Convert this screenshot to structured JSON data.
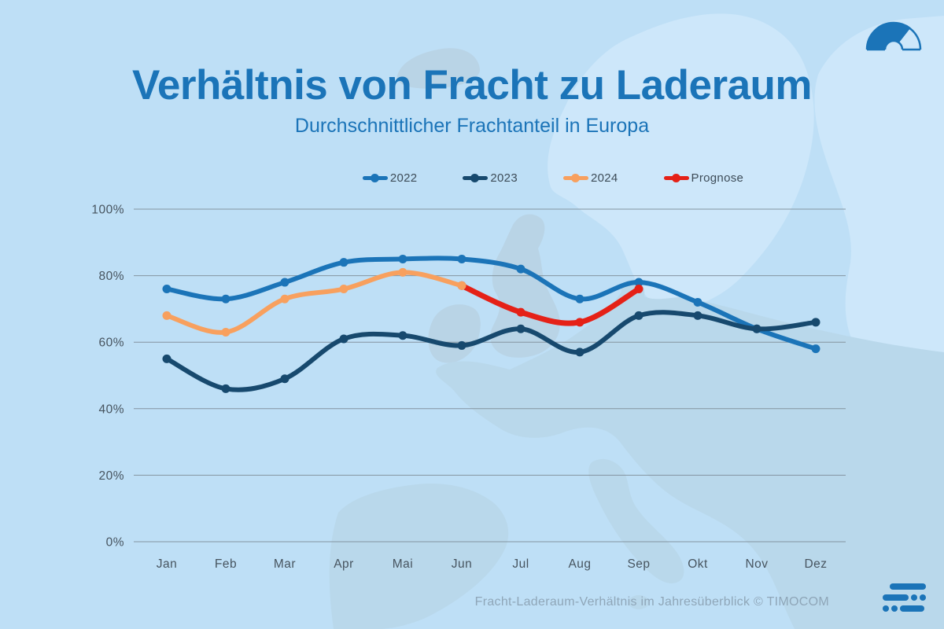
{
  "header": {
    "title": "Verhältnis von Fracht zu Laderaum",
    "subtitle": "Durchschnittlicher Frachtanteil in Europa"
  },
  "footer": {
    "caption": "Fracht-Laderaum-Verhältnis im Jahresüberblick © TIMOCOM"
  },
  "icons": {
    "top_right": "gauge-logo",
    "bottom_right": "timocom-logo"
  },
  "colors": {
    "background": "#bedff6",
    "title": "#1b74b8",
    "axis_text": "#47545f",
    "gridline": "#8494a0",
    "footer_text": "#8fa6b8",
    "logo_blue": "#1b74b8"
  },
  "chart_data": {
    "type": "line",
    "title": "Verhältnis von Fracht zu Laderaum",
    "subtitle": "Durchschnittlicher Frachtanteil in Europa",
    "categories": [
      "Jan",
      "Feb",
      "Mar",
      "Apr",
      "Mai",
      "Jun",
      "Jul",
      "Aug",
      "Sep",
      "Okt",
      "Nov",
      "Dez"
    ],
    "series": [
      {
        "name": "2022",
        "color": "#1b74b8",
        "z": 1,
        "values": [
          76,
          73,
          78,
          84,
          85,
          85,
          82,
          73,
          78,
          72,
          64,
          58
        ]
      },
      {
        "name": "2023",
        "color": "#17496e",
        "z": 2,
        "values": [
          55,
          46,
          49,
          61,
          62,
          59,
          64,
          57,
          68,
          68,
          64,
          66
        ]
      },
      {
        "name": "2024",
        "color": "#f8a05e",
        "z": 4,
        "values": [
          68,
          63,
          73,
          76,
          81,
          77,
          null,
          null,
          null,
          null,
          null,
          null
        ]
      },
      {
        "name": "Prognose",
        "color": "#e52117",
        "z": 3,
        "values": [
          null,
          null,
          null,
          null,
          null,
          77,
          69,
          66,
          76,
          null,
          null,
          null
        ]
      }
    ],
    "xlabel": "",
    "ylabel": "",
    "ylim": [
      0,
      100
    ],
    "yticks": [
      0,
      20,
      40,
      60,
      80,
      100
    ],
    "ytick_format": "percent",
    "grid": true,
    "legend_position": "top"
  }
}
